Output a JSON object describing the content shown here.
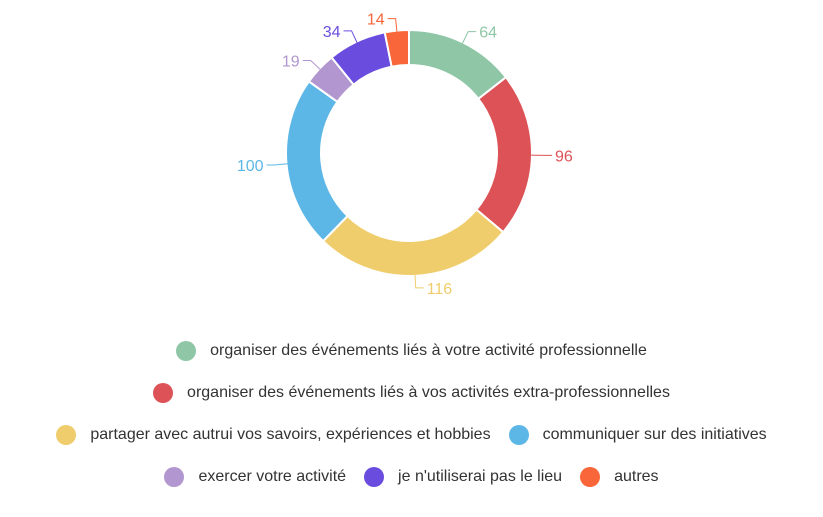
{
  "chart_data": {
    "type": "pie",
    "donut": true,
    "title": "",
    "legend_position": "bottom",
    "series": [
      {
        "name": "organiser des événements liés à votre activité professionnelle",
        "value": 64,
        "color": "#8ec6a6"
      },
      {
        "name": "organiser des événements liés à vos activités extra-professionnelles",
        "value": 96,
        "color": "#dd5256"
      },
      {
        "name": "partager avec autrui vos savoirs, expériences et hobbies",
        "value": 116,
        "color": "#f0cd6c"
      },
      {
        "name": "communiquer sur des initiatives",
        "value": 100,
        "color": "#5db7e6"
      },
      {
        "name": "exercer votre activité",
        "value": 19,
        "color": "#b196cf"
      },
      {
        "name": "je n'utiliserai pas le lieu",
        "value": 34,
        "color": "#6a4ddf"
      },
      {
        "name": "autres",
        "value": 14,
        "color": "#f8663a"
      }
    ]
  }
}
